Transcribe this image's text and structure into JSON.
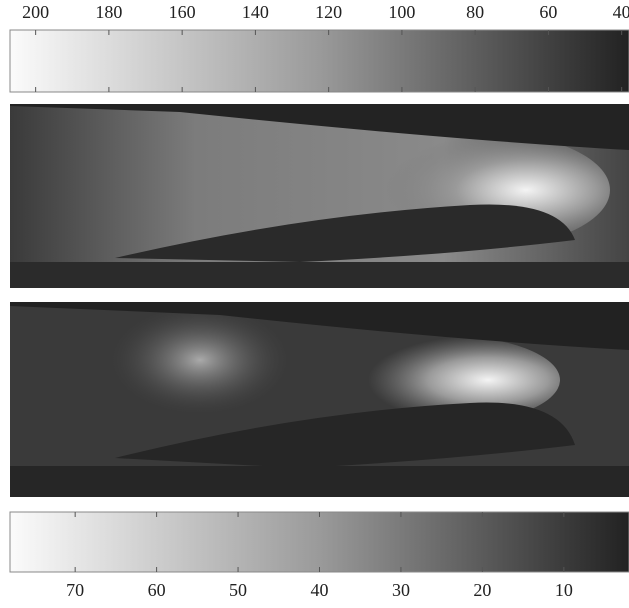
{
  "top_colorbar": {
    "xlim": [
      207,
      38
    ],
    "xticks": [
      200,
      180,
      160,
      140,
      120,
      100,
      80,
      60,
      40
    ]
  },
  "bottom_colorbar": {
    "xlim": [
      78,
      2
    ],
    "xticks": [
      70,
      60,
      50,
      40,
      30,
      20,
      10
    ]
  }
}
